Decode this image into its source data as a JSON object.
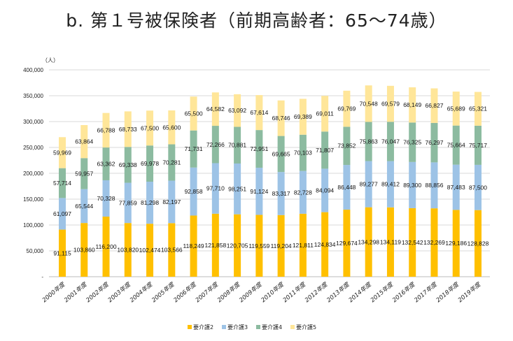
{
  "chart_data": {
    "type": "bar",
    "stacked": true,
    "title": "b.  第１号被保険者（前期高齢者：65～74歳）",
    "ylabel": "（人）",
    "xlabel": "",
    "ylim": [
      0,
      400000
    ],
    "yticks": [
      "-",
      "50,000",
      "100,000",
      "150,000",
      "200,000",
      "250,000",
      "300,000",
      "350,000",
      "400,000"
    ],
    "grid": true,
    "legend_position": "bottom",
    "categories": [
      "2000年度",
      "2001年度",
      "2002年度",
      "2003年度",
      "2004年度",
      "2005年度",
      "2006年度",
      "2007年度",
      "2008年度",
      "2009年度",
      "2010年度",
      "2011年度",
      "2012年度",
      "2013年度",
      "2014年度",
      "2015年度",
      "2016年度",
      "2017年度",
      "2018年度",
      "2019年度"
    ],
    "series": [
      {
        "name": "要介護2",
        "color": "#FFC000",
        "values": [
          91115,
          103860,
          116200,
          103820,
          102474,
          103566,
          118249,
          121858,
          120705,
          119559,
          119204,
          121811,
          124834,
          129674,
          134298,
          134119,
          132542,
          132269,
          129186,
          128828
        ]
      },
      {
        "name": "要介護3",
        "color": "#9DC3E6",
        "values": [
          61097,
          65544,
          70328,
          77859,
          81298,
          82197,
          92858,
          97710,
          98251,
          91124,
          83317,
          82728,
          84094,
          86448,
          89277,
          89412,
          89300,
          88856,
          87483,
          87500
        ]
      },
      {
        "name": "要介護4",
        "color": "#8CBBA0",
        "values": [
          57714,
          59957,
          63362,
          69338,
          69978,
          70281,
          71731,
          72266,
          70881,
          72951,
          69665,
          70103,
          71807,
          73852,
          75863,
          76047,
          76325,
          76297,
          75664,
          75717
        ]
      },
      {
        "name": "要介護5",
        "color": "#FFE699",
        "values": [
          59969,
          63864,
          66788,
          68733,
          67500,
          65600,
          65500,
          64582,
          63092,
          67614,
          68746,
          69389,
          69011,
          69769,
          70548,
          69579,
          68149,
          66827,
          65689,
          65321
        ]
      }
    ]
  }
}
